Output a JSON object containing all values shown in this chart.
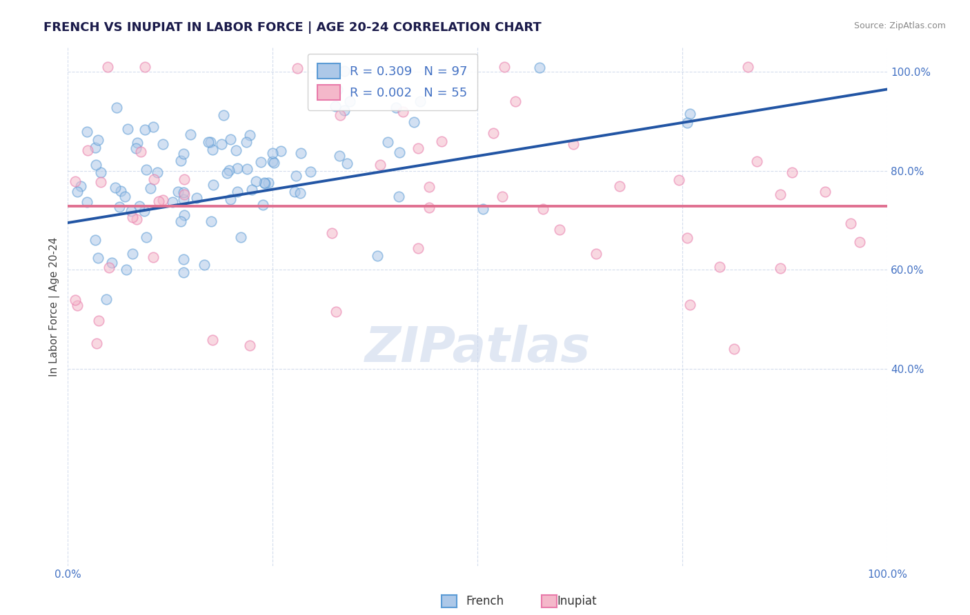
{
  "title": "FRENCH VS INUPIAT IN LABOR FORCE | AGE 20-24 CORRELATION CHART",
  "source_text": "Source: ZipAtlas.com",
  "ylabel": "In Labor Force | Age 20-24",
  "legend_r_french": "R = 0.309",
  "legend_n_french": "N = 97",
  "legend_r_inupiat": "R = 0.002",
  "legend_n_inupiat": "N = 55",
  "french_color": "#adc8e8",
  "french_edge_color": "#5b9bd5",
  "inupiat_color": "#f4b8ca",
  "inupiat_edge_color": "#e87aaa",
  "french_line_color": "#2255a4",
  "inupiat_line_color": "#e07090",
  "background_color": "#ffffff",
  "grid_color": "#c8d4e8",
  "title_color": "#1a1a4a",
  "ylabel_color": "#444444",
  "tick_label_color": "#4472c4",
  "legend_text_color": "#4472c4",
  "source_color": "#888888",
  "watermark_text": "ZIPatlas",
  "watermark_color": "#ccd8ec",
  "bottom_legend_color": "#333333",
  "french_line_y0": 0.695,
  "french_line_y1": 0.965,
  "inupiat_line_y": 0.728,
  "xlim": [
    0.0,
    1.0
  ],
  "ylim": [
    0.0,
    1.05
  ],
  "yticks": [
    0.4,
    0.6,
    0.8,
    1.0
  ],
  "xticks": [
    0.0,
    0.25,
    0.5,
    0.75,
    1.0
  ],
  "marker_size": 110,
  "marker_alpha": 0.55,
  "marker_lw": 1.2,
  "line_width": 2.8,
  "title_fontsize": 13,
  "source_fontsize": 9,
  "tick_fontsize": 11,
  "ylabel_fontsize": 11,
  "legend_fontsize": 13,
  "watermark_fontsize": 52
}
